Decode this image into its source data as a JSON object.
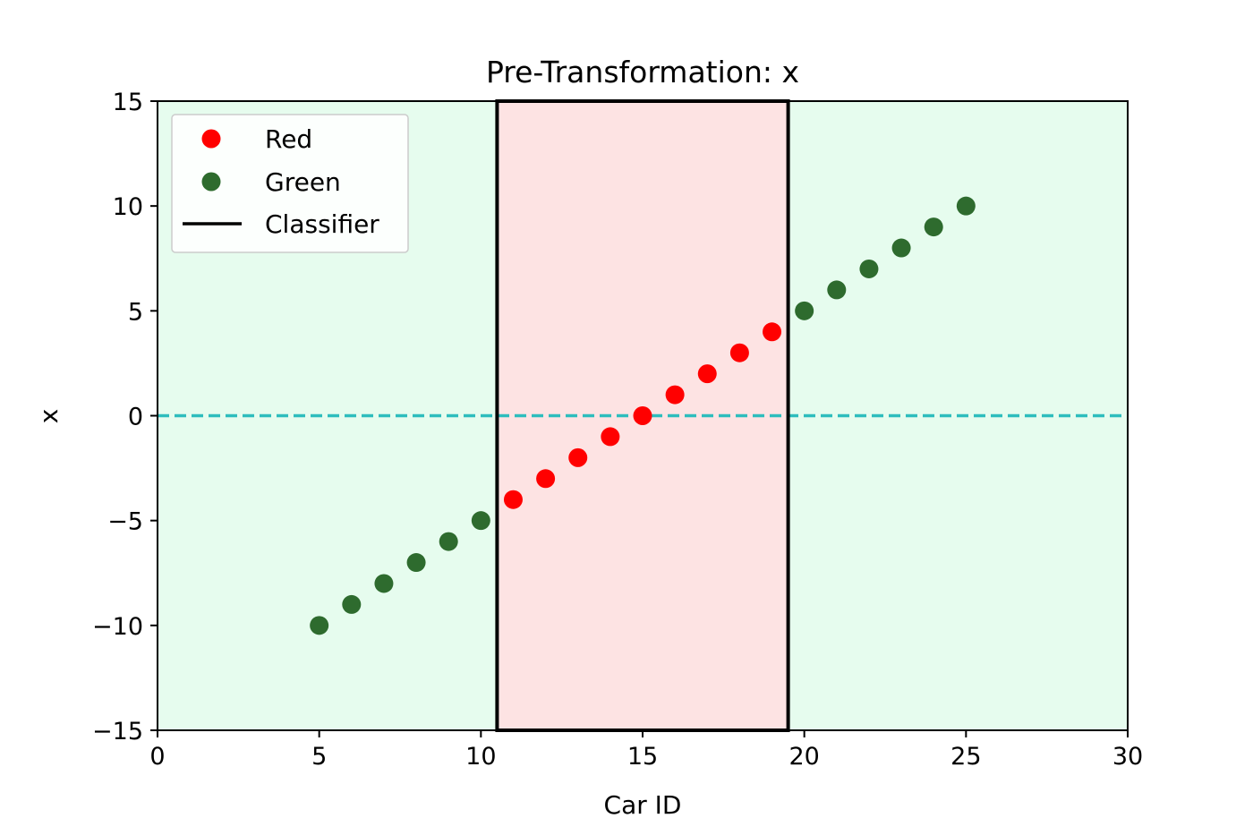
{
  "chart_data": {
    "type": "scatter",
    "title": "Pre-Transformation: x",
    "xlabel": "Car ID",
    "ylabel": "x",
    "xlim": [
      0,
      30
    ],
    "ylim": [
      -15,
      15
    ],
    "xticks": [
      0,
      5,
      10,
      15,
      20,
      25,
      30
    ],
    "yticks": [
      -15,
      -10,
      -5,
      0,
      5,
      10,
      15
    ],
    "ytick_labels": [
      "−15",
      "−10",
      "−5",
      "0",
      "5",
      "10",
      "15"
    ],
    "grid": false,
    "legend_position": "top-left",
    "regions": [
      {
        "x0": 0,
        "x1": 10.5,
        "class": "Green",
        "color": "#e6fcee"
      },
      {
        "x0": 10.5,
        "x1": 19.5,
        "class": "Red",
        "color": "#fde3e3"
      },
      {
        "x0": 19.5,
        "x1": 30,
        "class": "Green",
        "color": "#e6fcee"
      }
    ],
    "reference_line": {
      "y": 0,
      "color": "#2ebdbd",
      "style": "dashed"
    },
    "series": [
      {
        "name": "Red",
        "color": "#ff0000",
        "x": [
          11,
          12,
          13,
          14,
          15,
          16,
          17,
          18,
          19
        ],
        "y": [
          -4,
          -3,
          -2,
          -1,
          0,
          1,
          2,
          3,
          4
        ]
      },
      {
        "name": "Green",
        "color": "#2e6b2e",
        "x": [
          5,
          6,
          7,
          8,
          9,
          10,
          20,
          21,
          22,
          23,
          24,
          25
        ],
        "y": [
          -10,
          -9,
          -8,
          -7,
          -6,
          -5,
          5,
          6,
          7,
          8,
          9,
          10
        ]
      },
      {
        "name": "Classifier",
        "color": "#000000",
        "type": "line",
        "rect": {
          "x0": 10.5,
          "x1": 19.5,
          "y0": -15,
          "y1": 15
        }
      }
    ]
  }
}
